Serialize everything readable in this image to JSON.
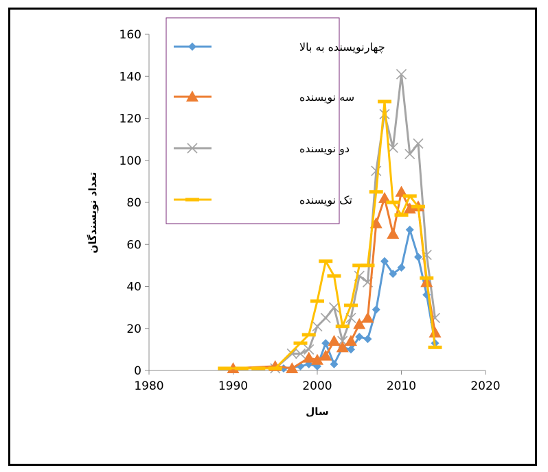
{
  "chart_data": {
    "type": "line",
    "xlabel": "سال",
    "ylabel": "تعداد نویسندگان",
    "xlim": [
      1980,
      2020
    ],
    "ylim": [
      0,
      160
    ],
    "xticks": [
      1980,
      1990,
      2000,
      2010,
      2020
    ],
    "yticks": [
      0,
      20,
      40,
      60,
      80,
      100,
      120,
      140,
      160
    ],
    "grid": false,
    "legend_position": "top-left",
    "series": [
      {
        "name": "چهارنویسنده به بالا",
        "color": "#5B9BD5",
        "marker": "diamond",
        "x": [
          1996,
          1998,
          1999,
          2000,
          2001,
          2002,
          2003,
          2004,
          2005,
          2006,
          2007,
          2008,
          2009,
          2010,
          2011,
          2012,
          2013,
          2014
        ],
        "y": [
          1,
          2,
          3,
          2,
          13,
          3,
          11,
          10,
          16,
          15,
          29,
          52,
          46,
          49,
          67,
          54,
          36,
          13
        ]
      },
      {
        "name": "سه نویسنده",
        "color": "#ED7D31",
        "marker": "triangle",
        "x": [
          1990,
          1995,
          1997,
          1999,
          2000,
          2001,
          2002,
          2003,
          2004,
          2005,
          2006,
          2007,
          2008,
          2009,
          2010,
          2011,
          2012,
          2013,
          2014
        ],
        "y": [
          1,
          2,
          1,
          6,
          5,
          7,
          14,
          11,
          14,
          22,
          25,
          70,
          82,
          65,
          85,
          77,
          78,
          42,
          18
        ]
      },
      {
        "name": "دو نویسنده",
        "color": "#A5A5A5",
        "marker": "x",
        "x": [
          1995,
          1997,
          1998,
          1999,
          2000,
          2001,
          2002,
          2003,
          2004,
          2005,
          2006,
          2007,
          2008,
          2009,
          2010,
          2011,
          2012,
          2013,
          2014
        ],
        "y": [
          1,
          8,
          8,
          10,
          21,
          25,
          30,
          14,
          25,
          45,
          42,
          95,
          122,
          106,
          141,
          103,
          108,
          55,
          25
        ]
      },
      {
        "name": "تک نویسنده",
        "color": "#FFC000",
        "marker": "dash",
        "x": [
          1989,
          1991,
          1993,
          1995,
          1998,
          1999,
          2000,
          2001,
          2002,
          2003,
          2004,
          2005,
          2006,
          2007,
          2008,
          2009,
          2010,
          2011,
          2012,
          2013,
          2014
        ],
        "y": [
          1,
          1,
          1,
          1,
          13,
          17,
          33,
          52,
          45,
          21,
          31,
          50,
          50,
          85,
          128,
          80,
          74,
          83,
          78,
          44,
          11
        ]
      }
    ]
  }
}
